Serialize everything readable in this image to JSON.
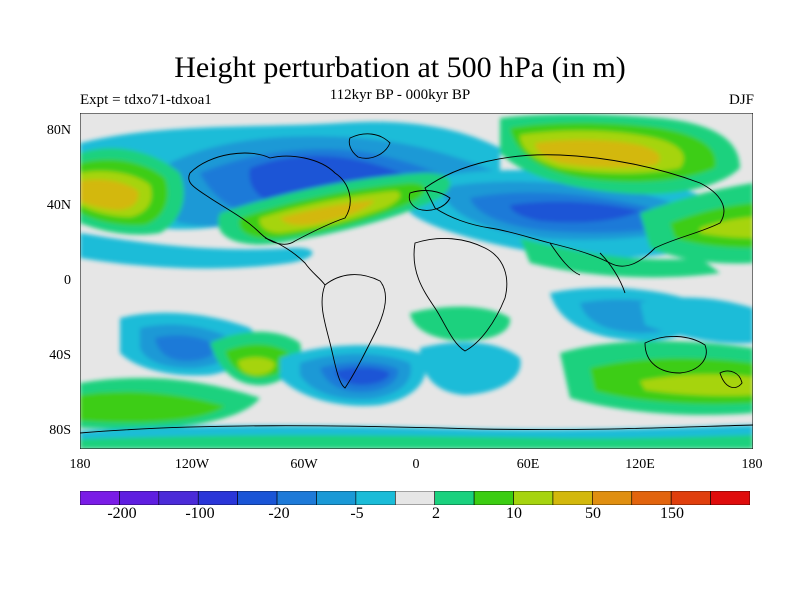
{
  "title": "Height perturbation at 500 hPa (in m)",
  "subtitle": "112kyr BP - 000kyr BP",
  "experiment": "Expt = tdxo71-tdxoa1",
  "season": "DJF",
  "lat_labels": [
    "80N",
    "40N",
    "0",
    "40S",
    "80S"
  ],
  "lon_labels": [
    "180",
    "120W",
    "60W",
    "0",
    "60E",
    "120E",
    "180"
  ],
  "colorbar": {
    "colors": [
      "#7a1ce6",
      "#5f1ee0",
      "#4b2bd8",
      "#2a36d8",
      "#1a55d6",
      "#1e7ad8",
      "#1a99d6",
      "#1bbcd8",
      "#e6e6e6",
      "#1ad17e",
      "#3ccd12",
      "#a6d40f",
      "#d3b80c",
      "#e08f10",
      "#e2640d",
      "#e03f0d",
      "#df0c0c"
    ],
    "labels": [
      "-200",
      "-100",
      "-20",
      "-5",
      "2",
      "10",
      "50",
      "150"
    ]
  },
  "chart_data": {
    "type": "heatmap",
    "title": "Height perturbation at 500 hPa (in m)",
    "subtitle": "112kyr BP - 000kyr BP",
    "xlabel": "",
    "ylabel": "",
    "x_range": [
      -180,
      180
    ],
    "y_range": [
      -90,
      90
    ],
    "x_ticks": [
      "180",
      "120W",
      "60W",
      "0",
      "60E",
      "120E",
      "180"
    ],
    "y_ticks": [
      "80N",
      "40N",
      "0",
      "40S",
      "80S"
    ],
    "colorbar_labels": [
      "-200",
      "-100",
      "-20",
      "-5",
      "2",
      "10",
      "50",
      "150"
    ]
  }
}
